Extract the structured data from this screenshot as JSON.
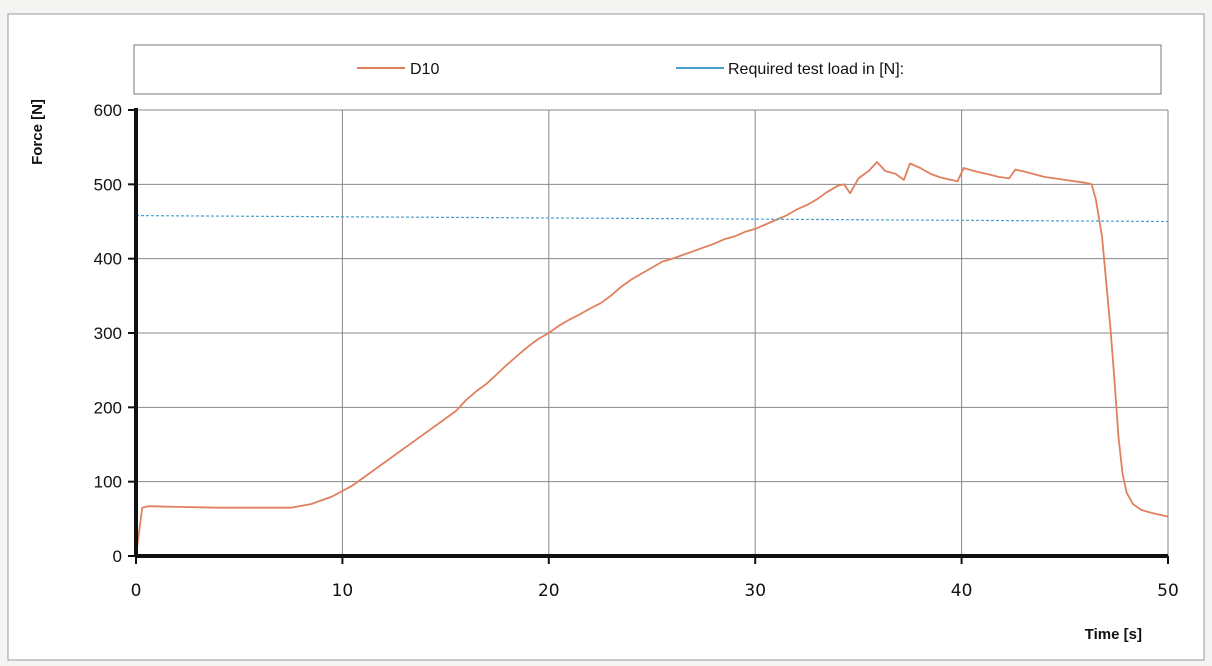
{
  "chart_data": {
    "type": "line",
    "xlabel": "Time [s]",
    "ylabel": "Force [N]",
    "xlim": [
      0,
      50
    ],
    "ylim": [
      0,
      600
    ],
    "x_ticks": [
      0,
      10,
      20,
      30,
      40,
      50
    ],
    "y_ticks": [
      0,
      100,
      200,
      300,
      400,
      500,
      600
    ],
    "grid": true,
    "legend_position": "top",
    "series": [
      {
        "name": "D10",
        "color": "#e0805e",
        "x": [
          0,
          0.3,
          0.6,
          2,
          4,
          6,
          7.5,
          8.5,
          9.5,
          10.5,
          11.5,
          12.5,
          13.5,
          14.5,
          15.5,
          16,
          16.5,
          17,
          17.5,
          18,
          18.5,
          19,
          19.5,
          20,
          20.5,
          21,
          21.5,
          22,
          22.5,
          23,
          23.5,
          24,
          24.5,
          25,
          25.5,
          26,
          26.5,
          27,
          27.5,
          28,
          28.5,
          29,
          29.5,
          30,
          30.5,
          31,
          31.5,
          32,
          32.5,
          33,
          33.5,
          34,
          34.3,
          34.6,
          35,
          35.5,
          35.9,
          36.3,
          36.8,
          37.2,
          37.5,
          38,
          38.5,
          39,
          39.5,
          39.8,
          40.1,
          40.6,
          41.2,
          41.8,
          42.3,
          42.6,
          43.2,
          44,
          45,
          46,
          46.3,
          46.5,
          46.8,
          47,
          47.2,
          47.4,
          47.6,
          47.8,
          48,
          48.3,
          48.7,
          49.2,
          50
        ],
        "y": [
          0,
          65,
          67,
          66,
          65,
          65,
          65,
          70,
          80,
          95,
          115,
          135,
          155,
          175,
          195,
          210,
          222,
          232,
          245,
          258,
          270,
          282,
          292,
          300,
          310,
          318,
          325,
          333,
          340,
          350,
          362,
          372,
          380,
          388,
          396,
          400,
          405,
          410,
          415,
          420,
          426,
          430,
          436,
          440,
          446,
          452,
          458,
          466,
          472,
          480,
          490,
          498,
          500,
          488,
          508,
          518,
          530,
          518,
          514,
          506,
          528,
          522,
          514,
          509,
          506,
          504,
          522,
          518,
          514,
          510,
          508,
          520,
          516,
          510,
          506,
          502,
          500,
          480,
          430,
          370,
          310,
          240,
          160,
          110,
          85,
          70,
          62,
          58,
          53
        ]
      },
      {
        "name": "Required test load in [N]:",
        "color": "#4a9fd0",
        "x": [
          0,
          50
        ],
        "y": [
          458,
          450
        ]
      }
    ]
  }
}
